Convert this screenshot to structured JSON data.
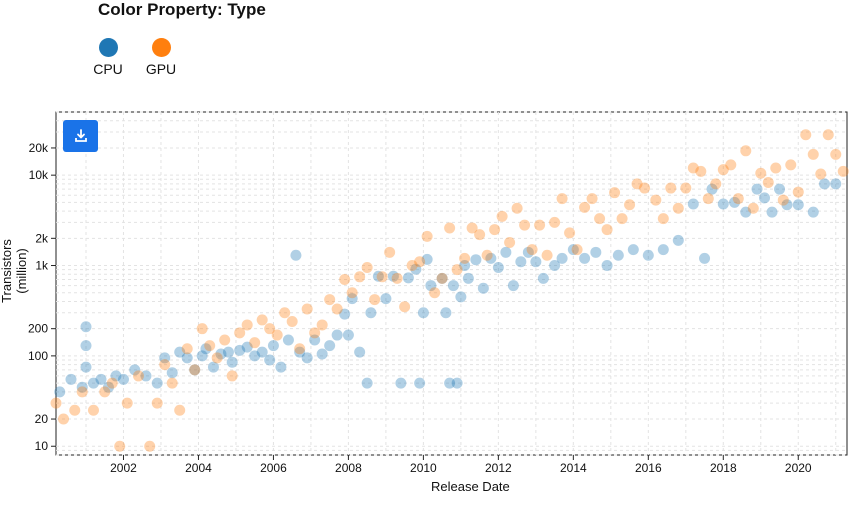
{
  "legend": {
    "title": "Color Property: Type",
    "items": [
      {
        "label": "CPU",
        "color": "#1f77b4"
      },
      {
        "label": "GPU",
        "color": "#ff7f0e"
      }
    ]
  },
  "download_icon": "download-icon",
  "chart_data": {
    "type": "scatter",
    "xlabel": "Release Date",
    "ylabel": "Transistors (million)",
    "xlim": [
      2000.2,
      2021.3
    ],
    "ylim": [
      8,
      50000
    ],
    "y_scale": "log",
    "x_ticks": [
      2002,
      2004,
      2006,
      2008,
      2010,
      2012,
      2014,
      2016,
      2018,
      2020
    ],
    "y_ticks": [
      {
        "value": 10,
        "label": "10"
      },
      {
        "value": 20,
        "label": "20"
      },
      {
        "value": 100,
        "label": "100"
      },
      {
        "value": 200,
        "label": "200"
      },
      {
        "value": 1000,
        "label": "1k"
      },
      {
        "value": 2000,
        "label": "2k"
      },
      {
        "value": 10000,
        "label": "10k"
      },
      {
        "value": 20000,
        "label": "20k"
      }
    ],
    "grid": true,
    "series": [
      {
        "name": "CPU",
        "color": "#1f77b4",
        "points": [
          [
            2000.3,
            40
          ],
          [
            2000.6,
            55
          ],
          [
            2000.9,
            45
          ],
          [
            2001.0,
            130
          ],
          [
            2001.0,
            75
          ],
          [
            2001.0,
            210
          ],
          [
            2001.2,
            50
          ],
          [
            2001.4,
            55
          ],
          [
            2001.6,
            45
          ],
          [
            2001.8,
            60
          ],
          [
            2002.0,
            55
          ],
          [
            2002.3,
            70
          ],
          [
            2002.6,
            60
          ],
          [
            2002.9,
            50
          ],
          [
            2003.1,
            95
          ],
          [
            2003.3,
            65
          ],
          [
            2003.5,
            110
          ],
          [
            2003.7,
            95
          ],
          [
            2003.9,
            70
          ],
          [
            2004.1,
            100
          ],
          [
            2004.2,
            120
          ],
          [
            2004.4,
            75
          ],
          [
            2004.6,
            105
          ],
          [
            2004.8,
            110
          ],
          [
            2004.9,
            85
          ],
          [
            2005.1,
            115
          ],
          [
            2005.3,
            125
          ],
          [
            2005.5,
            100
          ],
          [
            2005.7,
            110
          ],
          [
            2005.9,
            90
          ],
          [
            2006.0,
            130
          ],
          [
            2006.2,
            75
          ],
          [
            2006.4,
            150
          ],
          [
            2006.6,
            1300
          ],
          [
            2006.7,
            110
          ],
          [
            2006.9,
            95
          ],
          [
            2007.1,
            150
          ],
          [
            2007.3,
            105
          ],
          [
            2007.5,
            130
          ],
          [
            2007.7,
            170
          ],
          [
            2007.9,
            290
          ],
          [
            2008.0,
            170
          ],
          [
            2008.1,
            430
          ],
          [
            2008.3,
            110
          ],
          [
            2008.5,
            50
          ],
          [
            2008.6,
            300
          ],
          [
            2008.8,
            760
          ],
          [
            2009.0,
            430
          ],
          [
            2009.2,
            760
          ],
          [
            2009.4,
            50
          ],
          [
            2009.6,
            730
          ],
          [
            2009.8,
            910
          ],
          [
            2009.9,
            50
          ],
          [
            2010.0,
            300
          ],
          [
            2010.1,
            1170
          ],
          [
            2010.2,
            600
          ],
          [
            2010.5,
            720
          ],
          [
            2010.6,
            300
          ],
          [
            2010.7,
            50
          ],
          [
            2010.8,
            600
          ],
          [
            2010.9,
            50
          ],
          [
            2011.0,
            450
          ],
          [
            2011.1,
            1000
          ],
          [
            2011.2,
            720
          ],
          [
            2011.4,
            1160
          ],
          [
            2011.6,
            560
          ],
          [
            2011.8,
            1200
          ],
          [
            2012.0,
            950
          ],
          [
            2012.2,
            1400
          ],
          [
            2012.4,
            600
          ],
          [
            2012.6,
            1100
          ],
          [
            2012.8,
            1400
          ],
          [
            2013.0,
            1100
          ],
          [
            2013.2,
            720
          ],
          [
            2013.5,
            1000
          ],
          [
            2013.7,
            1200
          ],
          [
            2014.0,
            1500
          ],
          [
            2014.3,
            1200
          ],
          [
            2014.6,
            1400
          ],
          [
            2014.9,
            1000
          ],
          [
            2015.2,
            1300
          ],
          [
            2015.6,
            1500
          ],
          [
            2016.0,
            1300
          ],
          [
            2016.4,
            1500
          ],
          [
            2016.8,
            1900
          ],
          [
            2017.2,
            4800
          ],
          [
            2017.5,
            1200
          ],
          [
            2017.7,
            7000
          ],
          [
            2018.0,
            4800
          ],
          [
            2018.3,
            5000
          ],
          [
            2018.6,
            3900
          ],
          [
            2018.9,
            7000
          ],
          [
            2019.1,
            5600
          ],
          [
            2019.3,
            3900
          ],
          [
            2019.5,
            7000
          ],
          [
            2019.7,
            4700
          ],
          [
            2020.0,
            4700
          ],
          [
            2020.4,
            3900
          ],
          [
            2020.7,
            8000
          ],
          [
            2021.0,
            8000
          ]
        ]
      },
      {
        "name": "GPU",
        "color": "#ff7f0e",
        "points": [
          [
            2000.2,
            30
          ],
          [
            2000.4,
            20
          ],
          [
            2000.7,
            25
          ],
          [
            2000.9,
            40
          ],
          [
            2001.2,
            25
          ],
          [
            2001.5,
            40
          ],
          [
            2001.7,
            50
          ],
          [
            2001.9,
            10
          ],
          [
            2002.1,
            30
          ],
          [
            2002.4,
            60
          ],
          [
            2002.7,
            10
          ],
          [
            2002.9,
            30
          ],
          [
            2003.1,
            80
          ],
          [
            2003.3,
            50
          ],
          [
            2003.5,
            25
          ],
          [
            2003.7,
            120
          ],
          [
            2003.9,
            70
          ],
          [
            2004.1,
            200
          ],
          [
            2004.3,
            130
          ],
          [
            2004.5,
            95
          ],
          [
            2004.7,
            150
          ],
          [
            2004.9,
            60
          ],
          [
            2005.1,
            180
          ],
          [
            2005.3,
            220
          ],
          [
            2005.5,
            140
          ],
          [
            2005.7,
            250
          ],
          [
            2005.9,
            200
          ],
          [
            2006.1,
            170
          ],
          [
            2006.3,
            300
          ],
          [
            2006.5,
            240
          ],
          [
            2006.7,
            120
          ],
          [
            2006.9,
            330
          ],
          [
            2007.1,
            180
          ],
          [
            2007.3,
            220
          ],
          [
            2007.5,
            420
          ],
          [
            2007.7,
            330
          ],
          [
            2007.9,
            700
          ],
          [
            2008.1,
            500
          ],
          [
            2008.3,
            750
          ],
          [
            2008.5,
            950
          ],
          [
            2008.7,
            420
          ],
          [
            2008.9,
            750
          ],
          [
            2009.1,
            1400
          ],
          [
            2009.3,
            720
          ],
          [
            2009.5,
            350
          ],
          [
            2009.7,
            1000
          ],
          [
            2009.9,
            1100
          ],
          [
            2010.1,
            2100
          ],
          [
            2010.3,
            500
          ],
          [
            2010.5,
            720
          ],
          [
            2010.7,
            2600
          ],
          [
            2010.9,
            900
          ],
          [
            2011.1,
            1200
          ],
          [
            2011.3,
            2600
          ],
          [
            2011.5,
            2200
          ],
          [
            2011.7,
            1300
          ],
          [
            2011.9,
            2500
          ],
          [
            2012.1,
            3500
          ],
          [
            2012.3,
            1800
          ],
          [
            2012.5,
            4300
          ],
          [
            2012.7,
            2800
          ],
          [
            2012.9,
            1500
          ],
          [
            2013.1,
            2800
          ],
          [
            2013.3,
            1300
          ],
          [
            2013.5,
            3000
          ],
          [
            2013.7,
            5500
          ],
          [
            2013.9,
            2300
          ],
          [
            2014.1,
            1500
          ],
          [
            2014.3,
            4400
          ],
          [
            2014.5,
            5500
          ],
          [
            2014.7,
            3300
          ],
          [
            2014.9,
            2500
          ],
          [
            2015.1,
            6400
          ],
          [
            2015.3,
            3300
          ],
          [
            2015.5,
            4700
          ],
          [
            2015.7,
            8000
          ],
          [
            2015.9,
            7200
          ],
          [
            2016.2,
            5300
          ],
          [
            2016.4,
            3300
          ],
          [
            2016.6,
            7200
          ],
          [
            2016.8,
            4300
          ],
          [
            2017.0,
            7200
          ],
          [
            2017.2,
            12000
          ],
          [
            2017.4,
            11000
          ],
          [
            2017.6,
            5500
          ],
          [
            2017.8,
            8000
          ],
          [
            2018.0,
            11500
          ],
          [
            2018.2,
            13000
          ],
          [
            2018.4,
            5500
          ],
          [
            2018.6,
            18600
          ],
          [
            2018.8,
            4300
          ],
          [
            2019.0,
            10500
          ],
          [
            2019.2,
            8300
          ],
          [
            2019.4,
            12000
          ],
          [
            2019.6,
            5300
          ],
          [
            2019.8,
            13000
          ],
          [
            2020.0,
            6500
          ],
          [
            2020.2,
            28000
          ],
          [
            2020.4,
            17000
          ],
          [
            2020.6,
            10300
          ],
          [
            2020.8,
            28000
          ],
          [
            2021.0,
            17000
          ],
          [
            2021.2,
            11000
          ]
        ]
      }
    ]
  }
}
